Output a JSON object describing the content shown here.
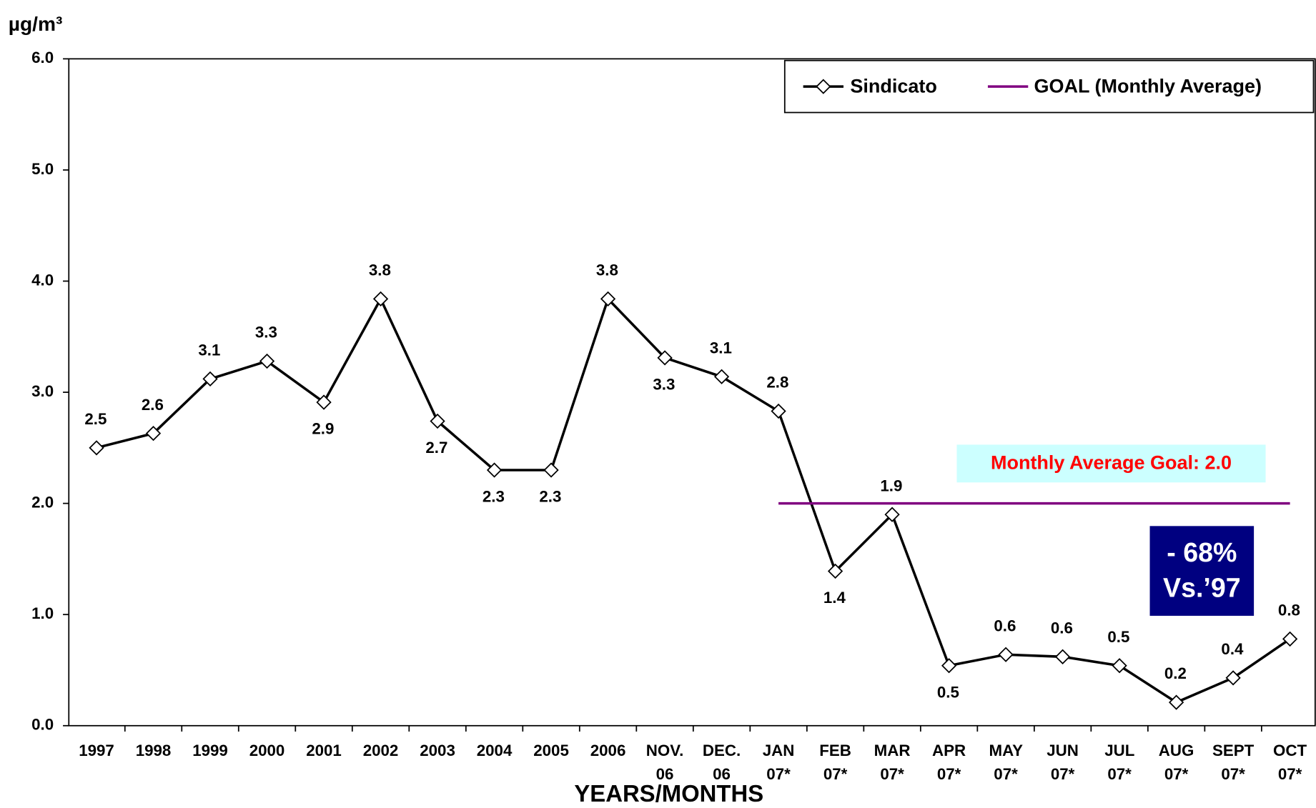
{
  "chart_data": {
    "type": "line",
    "y_axis_label": "µg/m³",
    "x_axis_label": "YEARS/MONTHS",
    "categories": [
      "1997",
      "1998",
      "1999",
      "2000",
      "2001",
      "2002",
      "2003",
      "2004",
      "2005",
      "2006",
      "NOV. 06",
      "DEC. 06",
      "JAN 07*",
      "FEB 07*",
      "MAR 07*",
      "APR 07*",
      "MAY 07*",
      "JUN 07*",
      "JUL 07*",
      "AUG 07*",
      "SEPT 07*",
      "OCT 07*"
    ],
    "series": [
      {
        "name": "Sindicato",
        "color": "#000000",
        "values": [
          2.5,
          2.63,
          3.12,
          3.28,
          2.91,
          3.84,
          2.74,
          2.3,
          2.3,
          3.84,
          3.31,
          3.14,
          2.83,
          1.39,
          1.9,
          0.54,
          0.64,
          0.62,
          0.54,
          0.21,
          0.43,
          0.78
        ],
        "value_labels": [
          "2.5",
          "2.6",
          "3.1",
          "3.3",
          "2.9",
          "3.8",
          "2.7",
          "2.3",
          "2.3",
          "3.8",
          "3.3",
          "3.1",
          "2.8",
          "1.4",
          "1.9",
          "0.5",
          "0.6",
          "0.6",
          "0.5",
          "0.2",
          "0.4",
          "0.8"
        ]
      },
      {
        "name": "GOAL (Monthly Average)",
        "color": "#800080",
        "values": [
          null,
          null,
          null,
          null,
          null,
          null,
          null,
          null,
          null,
          null,
          null,
          null,
          2.0,
          2.0,
          2.0,
          2.0,
          2.0,
          2.0,
          2.0,
          2.0,
          2.0,
          2.0
        ]
      }
    ],
    "ylim": [
      0,
      6
    ],
    "yticks": [
      {
        "value": 0,
        "label": "0.0"
      },
      {
        "value": 1,
        "label": "1.0"
      },
      {
        "value": 2,
        "label": "2.0"
      },
      {
        "value": 3,
        "label": "3.0"
      },
      {
        "value": 4,
        "label": "4.0"
      },
      {
        "value": 5,
        "label": "5.0"
      },
      {
        "value": 6,
        "label": "6.0"
      }
    ],
    "legend": "top-right",
    "annotations": [
      {
        "text": "Monthly Average Goal:  2.0",
        "color": "#ff0000",
        "background": "#ccffff"
      },
      {
        "lines": [
          "- 68%",
          "Vs.’97"
        ],
        "color": "#ffffff",
        "background": "#000080"
      }
    ]
  }
}
